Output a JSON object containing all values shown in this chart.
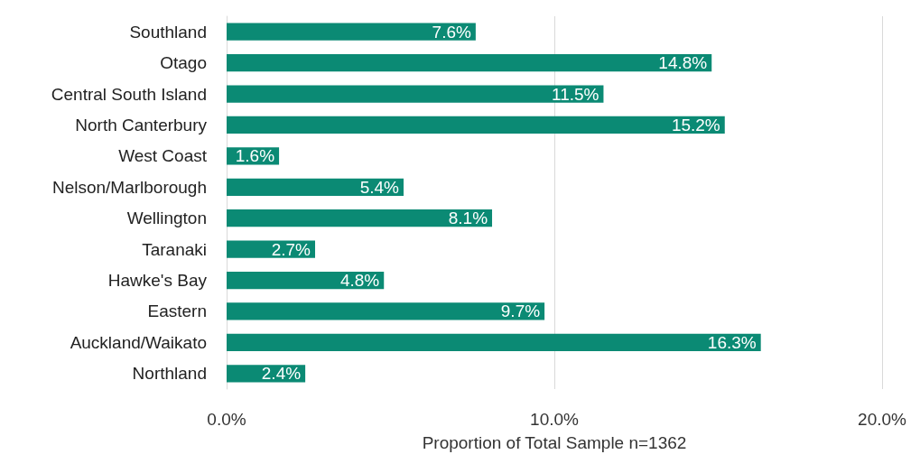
{
  "chart_data": {
    "type": "bar",
    "orientation": "horizontal",
    "xlabel": "Proportion of Total Sample n=1362",
    "categories": [
      "Southland",
      "Otago",
      "Central South Island",
      "North Canterbury",
      "West Coast",
      "Nelson/Marlborough",
      "Wellington",
      "Taranaki",
      "Hawke's Bay",
      "Eastern",
      "Auckland/Waikato",
      "Northland"
    ],
    "values": [
      7.6,
      14.8,
      11.5,
      15.2,
      1.6,
      5.4,
      8.1,
      2.7,
      4.8,
      9.7,
      16.3,
      2.4
    ],
    "value_labels": [
      "7.6%",
      "14.8%",
      "11.5%",
      "15.2%",
      "1.6%",
      "5.4%",
      "8.1%",
      "2.7%",
      "4.8%",
      "9.7%",
      "16.3%",
      "2.4%"
    ],
    "color": "#0b8a74",
    "xlim": [
      0,
      20
    ],
    "xticks": [
      {
        "value": 0,
        "label": "0.0%"
      },
      {
        "value": 10,
        "label": "10.0%"
      },
      {
        "value": 20,
        "label": "20.0%"
      }
    ],
    "grid": "x"
  }
}
